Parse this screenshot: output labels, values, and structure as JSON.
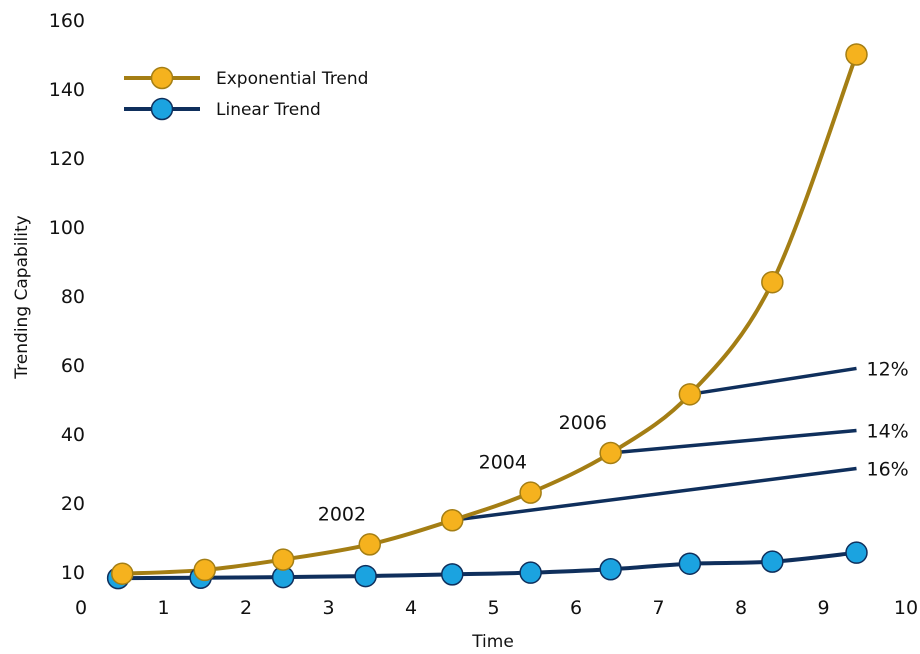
{
  "chart_data": {
    "type": "line",
    "xlabel": "Time",
    "ylabel": "Trending Capability",
    "xlim": [
      0,
      10
    ],
    "x_ticks": [
      "0",
      "1",
      "2",
      "3",
      "4",
      "5",
      "6",
      "7",
      "8",
      "9",
      "10"
    ],
    "y_ticks": [
      "10",
      "20",
      "40",
      "60",
      "80",
      "100",
      "120",
      "140",
      "160"
    ],
    "grid": false,
    "legend_position": "top-left",
    "series": [
      {
        "name": "Exponential Trend",
        "color": "#F5B21E",
        "line_color": "#A47E14",
        "x": [
          0.5,
          1.5,
          2.45,
          3.5,
          4.5,
          5.45,
          6.42,
          7.38,
          8.38,
          9.4
        ],
        "values": [
          9.5,
          10.3,
          11.8,
          14.0,
          17.5,
          23.0,
          34.5,
          51.5,
          84.0,
          150.0
        ]
      },
      {
        "name": "Linear Trend",
        "color": "#1BA3E0",
        "line_color": "#0F2F5C",
        "x": [
          0.45,
          1.45,
          2.45,
          3.45,
          4.5,
          5.45,
          6.42,
          7.38,
          8.38,
          9.4
        ],
        "values": [
          8.2,
          8.3,
          8.5,
          8.8,
          9.3,
          9.8,
          10.4,
          11.2,
          11.5,
          12.8
        ]
      }
    ],
    "projections": [
      {
        "label": "12%",
        "from": [
          7.38,
          51.5
        ],
        "to": [
          9.4,
          59.0
        ],
        "color": "#0F2F5C"
      },
      {
        "label": "14%",
        "from": [
          6.42,
          34.5
        ],
        "to": [
          9.4,
          41.0
        ],
        "color": "#0F2F5C"
      },
      {
        "label": "16%",
        "from": [
          4.5,
          17.5
        ],
        "to": [
          9.4,
          30.0
        ],
        "color": "#0F2F5C"
      }
    ],
    "annotations": [
      {
        "text": "2002",
        "x": 3.5,
        "y": 14.0
      },
      {
        "text": "2004",
        "x": 5.45,
        "y": 23.0
      },
      {
        "text": "2006",
        "x": 6.42,
        "y": 34.5
      }
    ]
  }
}
